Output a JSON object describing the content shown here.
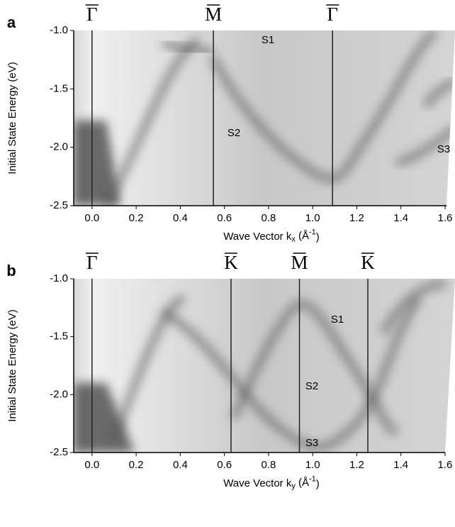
{
  "chart_data": [
    {
      "type": "heatmap",
      "panel_label": "a",
      "y_label": "Initial State Energy (eV)",
      "x_label": [
        "Wave Vector k",
        "x",
        " (Å",
        "-1",
        ")"
      ],
      "xlim": [
        -0.083,
        1.645
      ],
      "ylim": [
        -2.5,
        -1.0
      ],
      "xticks": [
        {
          "value": 0,
          "label": "0.0"
        },
        0.2,
        0.4,
        0.6,
        0.8,
        {
          "value": 1,
          "label": "1.0"
        },
        1.2,
        1.4,
        1.6
      ],
      "yticks": [
        {
          "value": -1,
          "label": "-1.0"
        },
        -1.5,
        {
          "value": -2,
          "label": "-2.0"
        },
        -2.5
      ],
      "symmetry_points": [
        {
          "label": "Γ",
          "value": 0
        },
        {
          "label": "M",
          "value": 0.55
        },
        {
          "label": "Γ",
          "value": 1.09
        }
      ],
      "annotations": [
        "S1",
        "S2",
        "S3"
      ]
    },
    {
      "type": "heatmap",
      "panel_label": "b",
      "y_label": "Initial State Energy (eV)",
      "x_label": [
        "Wave Vector k",
        "y",
        " (Å",
        "-1",
        ")"
      ],
      "xlim": [
        -0.083,
        1.645
      ],
      "ylim": [
        -2.5,
        -1.0
      ],
      "xticks": [
        {
          "value": 0,
          "label": "0.0"
        },
        0.2,
        0.4,
        0.6,
        0.8,
        {
          "value": 1,
          "label": "1.0"
        },
        1.2,
        1.4,
        1.6
      ],
      "yticks": [
        {
          "value": -1,
          "label": "-1.0"
        },
        -1.5,
        {
          "value": -2,
          "label": "-2.0"
        },
        -2.5
      ],
      "symmetry_points": [
        {
          "label": "Γ",
          "value": 0
        },
        {
          "label": "K",
          "value": 0.63
        },
        {
          "label": "M",
          "value": 0.94
        },
        {
          "label": "K",
          "value": 1.25
        }
      ],
      "annotations": [
        "S1",
        "S2",
        "S3"
      ]
    }
  ]
}
